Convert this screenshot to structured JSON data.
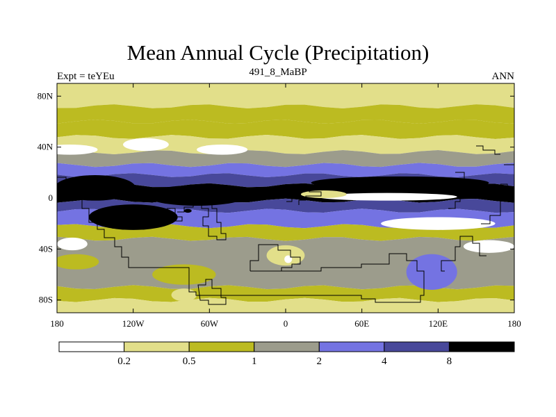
{
  "title": "Mean Annual Cycle (Precipitation)",
  "left_label": "Expt = teYEu",
  "center_label": "491_8_MaBP",
  "right_label": "ANN",
  "map": {
    "projection": "cylindrical equidistant",
    "lon_range": [
      -180,
      180
    ],
    "lat_range": [
      -90,
      90
    ],
    "lon_ticks": [
      {
        "value": -180,
        "label": "180"
      },
      {
        "value": -120,
        "label": "120W"
      },
      {
        "value": -60,
        "label": "60W"
      },
      {
        "value": 0,
        "label": "0"
      },
      {
        "value": 60,
        "label": "60E"
      },
      {
        "value": 120,
        "label": "120E"
      },
      {
        "value": 180,
        "label": "180"
      }
    ],
    "lat_ticks": [
      {
        "value": 80,
        "label": "80N"
      },
      {
        "value": 40,
        "label": "40N"
      },
      {
        "value": 0,
        "label": "0"
      },
      {
        "value": -40,
        "label": "40S"
      },
      {
        "value": -80,
        "label": "80S"
      }
    ],
    "bands": [
      {
        "lat": [
          90,
          72
        ],
        "level": 1
      },
      {
        "lat": [
          72,
          60
        ],
        "level": 2
      },
      {
        "lat": [
          60,
          48
        ],
        "level": 2
      },
      {
        "lat": [
          48,
          36
        ],
        "level": 1
      },
      {
        "lat": [
          36,
          26
        ],
        "level": 3
      },
      {
        "lat": [
          26,
          18
        ],
        "level": 4
      },
      {
        "lat": [
          18,
          10
        ],
        "level": 5
      },
      {
        "lat": [
          10,
          -2
        ],
        "level": 6
      },
      {
        "lat": [
          -2,
          -10
        ],
        "level": 5
      },
      {
        "lat": [
          -10,
          -22
        ],
        "level": 4
      },
      {
        "lat": [
          -22,
          -32
        ],
        "level": 2
      },
      {
        "lat": [
          -32,
          -70
        ],
        "level": 3
      },
      {
        "lat": [
          -70,
          -80
        ],
        "level": 2
      },
      {
        "lat": [
          -80,
          -90
        ],
        "level": 1
      }
    ],
    "patches": [
      {
        "lon": -170,
        "lat": 38,
        "rx": 22,
        "ry": 4,
        "level": 0
      },
      {
        "lon": -110,
        "lat": 42,
        "rx": 18,
        "ry": 5,
        "level": 0
      },
      {
        "lon": -50,
        "lat": 38,
        "rx": 20,
        "ry": 4,
        "level": 0
      },
      {
        "lon": -150,
        "lat": 8,
        "rx": 32,
        "ry": 10,
        "level": 6
      },
      {
        "lon": -70,
        "lat": 2,
        "rx": 40,
        "ry": 8,
        "level": 6
      },
      {
        "lon": 90,
        "lat": 12,
        "rx": 70,
        "ry": 5,
        "level": 6
      },
      {
        "lon": 80,
        "lat": 1,
        "rx": 55,
        "ry": 3,
        "level": 0
      },
      {
        "lon": 30,
        "lat": 3,
        "rx": 18,
        "ry": 3,
        "level": 1
      },
      {
        "lon": -148,
        "lat": -16,
        "rx": 4,
        "ry": 4,
        "level": 7
      },
      {
        "lon": -135,
        "lat": -20,
        "rx": 5,
        "ry": 4,
        "level": 7
      },
      {
        "lon": -77,
        "lat": -10,
        "rx": 3,
        "ry": 1.5,
        "level": 7
      },
      {
        "lon": -120,
        "lat": -15,
        "rx": 35,
        "ry": 10,
        "level": 6
      },
      {
        "lon": 120,
        "lat": -20,
        "rx": 45,
        "ry": 5,
        "level": 0
      },
      {
        "lon": 160,
        "lat": -38,
        "rx": 20,
        "ry": 5,
        "level": 0
      },
      {
        "lon": -168,
        "lat": -36,
        "rx": 12,
        "ry": 5,
        "level": 0
      },
      {
        "lon": -165,
        "lat": -50,
        "rx": 18,
        "ry": 6,
        "level": 2
      },
      {
        "lon": 0,
        "lat": -45,
        "rx": 15,
        "ry": 8,
        "level": 1
      },
      {
        "lon": 2,
        "lat": -48,
        "rx": 3,
        "ry": 3,
        "level": 0
      },
      {
        "lon": 115,
        "lat": -58,
        "rx": 20,
        "ry": 14,
        "level": 4
      },
      {
        "lon": -80,
        "lat": -60,
        "rx": 25,
        "ry": 8,
        "level": 2
      },
      {
        "lon": -80,
        "lat": -76,
        "rx": 10,
        "ry": 5,
        "level": 1
      }
    ],
    "colors": [
      "#ffffff",
      "#e2df8a",
      "#bcbb21",
      "#9c9c8c",
      "#7473e2",
      "#48489a",
      "#000000"
    ]
  },
  "colorbar": {
    "colors": [
      "#ffffff",
      "#e2df8a",
      "#bcbb21",
      "#9c9c8c",
      "#7473e2",
      "#48489a",
      "#000000"
    ],
    "labels": [
      "0.2",
      "0.5",
      "1",
      "2",
      "4",
      "8"
    ]
  }
}
